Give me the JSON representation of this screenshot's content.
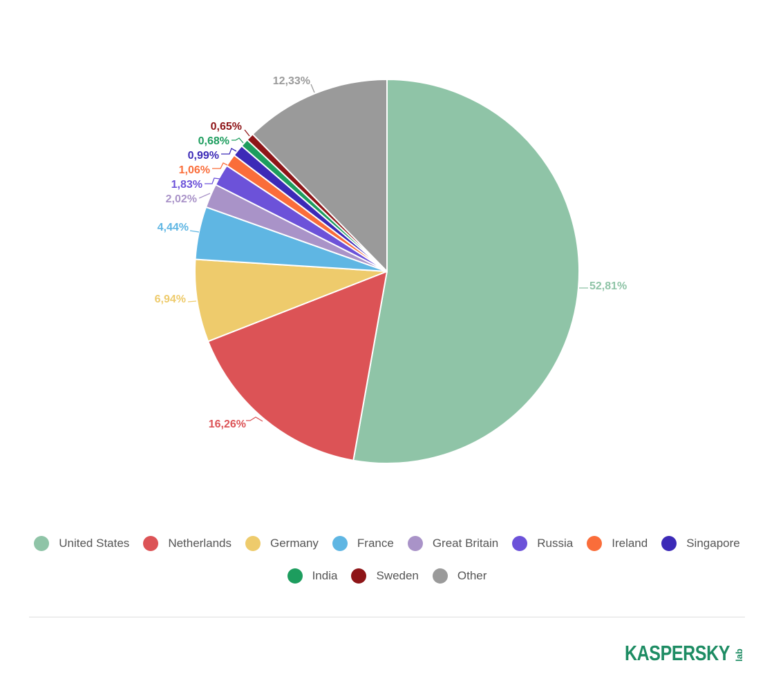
{
  "chart_data": {
    "type": "pie",
    "title": "",
    "start_angle_deg": 0,
    "direction": "clockwise",
    "slices": [
      {
        "label": "United States",
        "value": 52.81,
        "value_label": "52,81%",
        "color": "#8fc4a7"
      },
      {
        "label": "Netherlands",
        "value": 16.26,
        "value_label": "16,26%",
        "color": "#dc5356"
      },
      {
        "label": "Germany",
        "value": 6.94,
        "value_label": "6,94%",
        "color": "#eecb6c"
      },
      {
        "label": "France",
        "value": 4.44,
        "value_label": "4,44%",
        "color": "#5fb6e3"
      },
      {
        "label": "Great Britain",
        "value": 2.02,
        "value_label": "2,02%",
        "color": "#a993c8"
      },
      {
        "label": "Russia",
        "value": 1.83,
        "value_label": "1,83%",
        "color": "#6c52d9"
      },
      {
        "label": "Ireland",
        "value": 1.06,
        "value_label": "1,06%",
        "color": "#fa6d3a"
      },
      {
        "label": "Singapore",
        "value": 0.99,
        "value_label": "0,99%",
        "color": "#3c2ab7"
      },
      {
        "label": "India",
        "value": 0.68,
        "value_label": "0,68%",
        "color": "#1d9d5e"
      },
      {
        "label": "Sweden",
        "value": 0.65,
        "value_label": "0,65%",
        "color": "#8e1518"
      },
      {
        "label": "Other",
        "value": 12.33,
        "value_label": "12,33%",
        "color": "#9a9a9a"
      }
    ],
    "legend_position": "bottom"
  },
  "legend": {
    "row1": [
      "United States",
      "Netherlands",
      "Germany",
      "France",
      "Great Britain",
      "Russia",
      "Ireland",
      "Singapore"
    ],
    "row2": [
      "India",
      "Sweden",
      "Other"
    ]
  },
  "brand": {
    "logo_text": "KASPERSKY",
    "logo_sub": "lab",
    "logo_color": "#1d8c63",
    "accent_color": "#e2001a"
  }
}
